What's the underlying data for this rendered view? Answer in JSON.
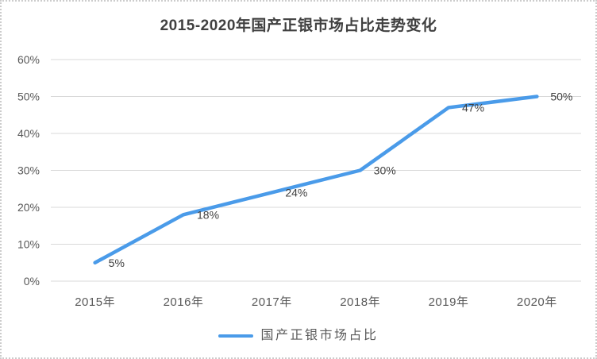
{
  "chart": {
    "title": "2015-2020年国产正银市场占比走势变化",
    "legend_label": "国产正银市场占比"
  },
  "chart_data": {
    "type": "line",
    "title": "2015-2020年国产正银市场占比走势变化",
    "categories": [
      "2015年",
      "2016年",
      "2017年",
      "2018年",
      "2019年",
      "2020年"
    ],
    "series": [
      {
        "name": "国产正银市场占比",
        "values": [
          5,
          18,
          24,
          30,
          47,
          50
        ],
        "data_labels": [
          "5%",
          "18%",
          "24%",
          "30%",
          "47%",
          "50%"
        ]
      }
    ],
    "ylim": [
      0,
      60
    ],
    "y_tick_step": 10,
    "y_tick_labels": [
      "0%",
      "10%",
      "20%",
      "30%",
      "40%",
      "50%",
      "60%"
    ],
    "grid": true,
    "legend_position": "bottom",
    "colors": {
      "line": "#4A9BE9",
      "title_text": "#404040",
      "axis_text": "#595959",
      "data_label_text": "#404040",
      "gridline": "#D9D9D9",
      "frame_border": "#CCCCCC",
      "background": "#FFFFFF"
    }
  }
}
